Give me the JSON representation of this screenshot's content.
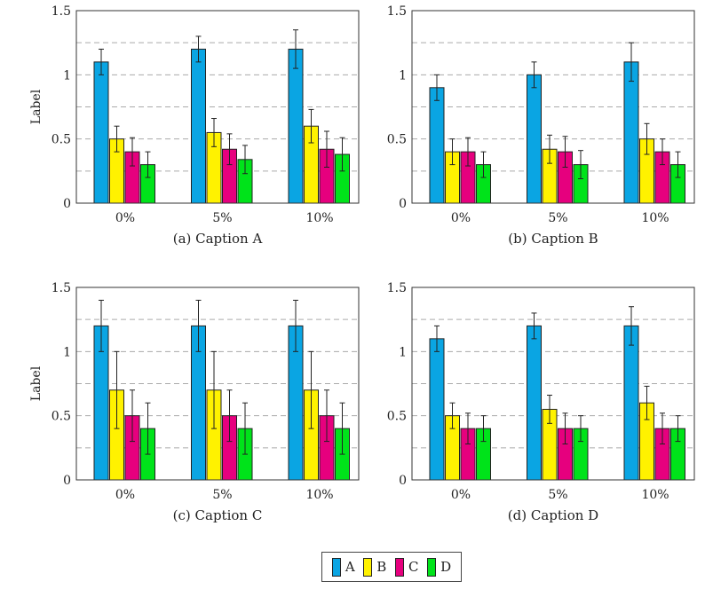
{
  "legend": [
    {
      "name": "A",
      "color": "#0AA5E3"
    },
    {
      "name": "B",
      "color": "#FFF200"
    },
    {
      "name": "C",
      "color": "#E6007E"
    },
    {
      "name": "D",
      "color": "#00E31A"
    }
  ],
  "chart_data": [
    {
      "type": "bar",
      "caption": "(a) Caption A",
      "ylabel": "Label",
      "ylim": [
        0,
        1.5
      ],
      "yticks": [
        "0",
        "0.5",
        "1",
        "1.5"
      ],
      "grid": "dashed-horizontal",
      "categories": [
        "0%",
        "5%",
        "10%"
      ],
      "series": [
        {
          "name": "A",
          "values": [
            1.1,
            1.2,
            1.2
          ],
          "errors": [
            0.1,
            0.1,
            0.15
          ]
        },
        {
          "name": "B",
          "values": [
            0.5,
            0.55,
            0.6
          ],
          "errors": [
            0.1,
            0.11,
            0.13
          ]
        },
        {
          "name": "C",
          "values": [
            0.4,
            0.42,
            0.42
          ],
          "errors": [
            0.11,
            0.12,
            0.14
          ]
        },
        {
          "name": "D",
          "values": [
            0.3,
            0.34,
            0.38
          ],
          "errors": [
            0.1,
            0.11,
            0.13
          ]
        }
      ]
    },
    {
      "type": "bar",
      "caption": "(b) Caption B",
      "ylabel": "",
      "ylim": [
        0,
        1.5
      ],
      "yticks": [
        "0",
        "0.5",
        "1",
        "1.5"
      ],
      "grid": "dashed-horizontal",
      "categories": [
        "0%",
        "5%",
        "10%"
      ],
      "series": [
        {
          "name": "A",
          "values": [
            0.9,
            1.0,
            1.1
          ],
          "errors": [
            0.1,
            0.1,
            0.15
          ]
        },
        {
          "name": "B",
          "values": [
            0.4,
            0.42,
            0.5
          ],
          "errors": [
            0.1,
            0.11,
            0.12
          ]
        },
        {
          "name": "C",
          "values": [
            0.4,
            0.4,
            0.4
          ],
          "errors": [
            0.11,
            0.12,
            0.1
          ]
        },
        {
          "name": "D",
          "values": [
            0.3,
            0.3,
            0.3
          ],
          "errors": [
            0.1,
            0.11,
            0.1
          ]
        }
      ]
    },
    {
      "type": "bar",
      "caption": "(c) Caption C",
      "ylabel": "Label",
      "ylim": [
        0,
        1.5
      ],
      "yticks": [
        "0",
        "0.5",
        "1",
        "1.5"
      ],
      "grid": "dashed-horizontal",
      "categories": [
        "0%",
        "5%",
        "10%"
      ],
      "series": [
        {
          "name": "A",
          "values": [
            1.2,
            1.2,
            1.2
          ],
          "errors": [
            0.2,
            0.2,
            0.2
          ]
        },
        {
          "name": "B",
          "values": [
            0.7,
            0.7,
            0.7
          ],
          "errors": [
            0.3,
            0.3,
            0.3
          ]
        },
        {
          "name": "C",
          "values": [
            0.5,
            0.5,
            0.5
          ],
          "errors": [
            0.2,
            0.2,
            0.2
          ]
        },
        {
          "name": "D",
          "values": [
            0.4,
            0.4,
            0.4
          ],
          "errors": [
            0.2,
            0.2,
            0.2
          ]
        }
      ]
    },
    {
      "type": "bar",
      "caption": "(d) Caption D",
      "ylabel": "",
      "ylim": [
        0,
        1.5
      ],
      "yticks": [
        "0",
        "0.5",
        "1",
        "1.5"
      ],
      "grid": "dashed-horizontal",
      "categories": [
        "0%",
        "5%",
        "10%"
      ],
      "series": [
        {
          "name": "A",
          "values": [
            1.1,
            1.2,
            1.2
          ],
          "errors": [
            0.1,
            0.1,
            0.15
          ]
        },
        {
          "name": "B",
          "values": [
            0.5,
            0.55,
            0.6
          ],
          "errors": [
            0.1,
            0.11,
            0.13
          ]
        },
        {
          "name": "C",
          "values": [
            0.4,
            0.4,
            0.4
          ],
          "errors": [
            0.12,
            0.12,
            0.12
          ]
        },
        {
          "name": "D",
          "values": [
            0.4,
            0.4,
            0.4
          ],
          "errors": [
            0.1,
            0.1,
            0.1
          ]
        }
      ]
    }
  ]
}
